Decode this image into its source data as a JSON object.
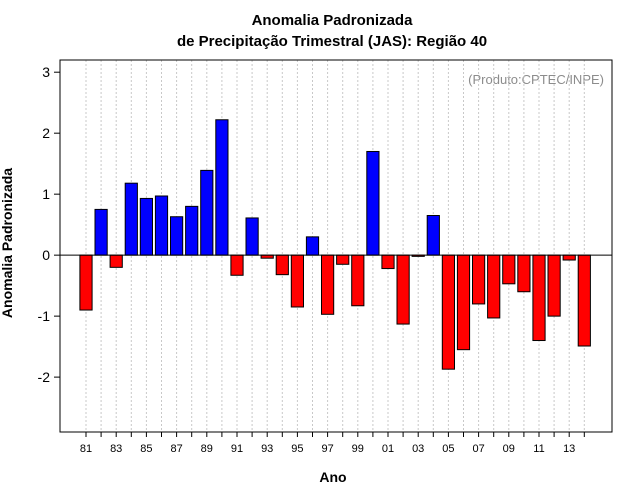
{
  "chart_data": {
    "type": "bar",
    "title_line1": "Anomalia Padronizada",
    "title_line2": "de Precipitação Trimestral (JAS): Região 40",
    "xlabel": "Ano",
    "ylabel": "Anomalia Padronizada",
    "annotation": "(Produto:CPTEC/INPE)",
    "ylim": [
      -2.9,
      3.2
    ],
    "yticks": [
      -2,
      -1,
      0,
      1,
      2,
      3
    ],
    "ytick_labels": [
      "-2",
      "-1",
      "0",
      "1",
      "2",
      "3"
    ],
    "categories": [
      "81",
      "82",
      "83",
      "84",
      "85",
      "86",
      "87",
      "88",
      "89",
      "90",
      "91",
      "92",
      "93",
      "94",
      "95",
      "96",
      "97",
      "98",
      "99",
      "00",
      "01",
      "02",
      "03",
      "04",
      "05",
      "06",
      "07",
      "08",
      "09",
      "10",
      "11",
      "12",
      "13",
      "14"
    ],
    "values": [
      -0.9,
      0.75,
      -0.2,
      1.18,
      0.93,
      0.97,
      0.63,
      0.8,
      1.39,
      2.22,
      -0.33,
      0.61,
      -0.05,
      -0.32,
      -0.85,
      0.3,
      -0.97,
      -0.15,
      -0.83,
      1.7,
      -0.22,
      -1.13,
      -0.02,
      0.65,
      -1.87,
      -1.55,
      -0.8,
      -1.03,
      -0.47,
      -0.6,
      -1.4,
      -1.0,
      -0.08,
      -1.49
    ],
    "xtick_labels": [
      "81",
      "83",
      "85",
      "87",
      "89",
      "91",
      "93",
      "95",
      "97",
      "99",
      "01",
      "03",
      "05",
      "07",
      "09",
      "11",
      "13"
    ],
    "colors": {
      "positive": "#0000ff",
      "negative": "#ff0000",
      "grid": "#c8c8c8",
      "zero_line": "#000000"
    }
  }
}
